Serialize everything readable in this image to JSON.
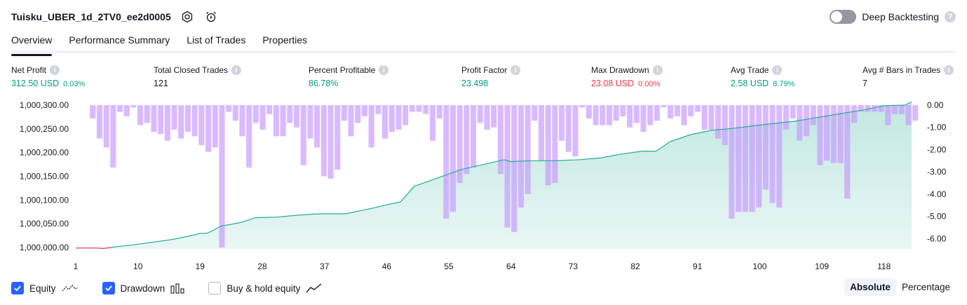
{
  "header": {
    "strategy_name": "Tuisku_UBER_1d_2TV0_ee2d0005",
    "deep_backtesting_label": "Deep Backtesting"
  },
  "tabs": [
    {
      "label": "Overview",
      "active": true
    },
    {
      "label": "Performance Summary",
      "active": false
    },
    {
      "label": "List of Trades",
      "active": false
    },
    {
      "label": "Properties",
      "active": false
    }
  ],
  "metrics": [
    {
      "label": "Net Profit",
      "value": "312.50 USD",
      "pct": "0.03%",
      "color": "#089981"
    },
    {
      "label": "Total Closed Trades",
      "value": "121",
      "pct": "",
      "color": "#131722"
    },
    {
      "label": "Percent Profitable",
      "value": "86.78%",
      "pct": "",
      "color": "#089981"
    },
    {
      "label": "Profit Factor",
      "value": "23.498",
      "pct": "",
      "color": "#089981"
    },
    {
      "label": "Max Drawdown",
      "value": "23.08 USD",
      "pct": "0.00%",
      "color": "#f23645"
    },
    {
      "label": "Avg Trade",
      "value": "2.58 USD",
      "pct": "8.79%",
      "color": "#089981"
    },
    {
      "label": "Avg # Bars in Trades",
      "value": "7",
      "pct": "",
      "color": "#131722"
    }
  ],
  "legend": {
    "equity_label": "Equity",
    "drawdown_label": "Drawdown",
    "buy_hold_label": "Buy & hold equity",
    "equity_checked": true,
    "drawdown_checked": true,
    "buy_hold_checked": false
  },
  "mode": {
    "absolute_label": "Absolute",
    "percentage_label": "Percentage",
    "active": "absolute"
  },
  "colors": {
    "equity_line": "#22ab94",
    "equity_line_negative": "#f23645",
    "equity_fill": "#22ab94",
    "drawdown_bar": "#c99bff",
    "accent": "#2962ff"
  },
  "chart_data": {
    "type": "area",
    "x_ticks": [
      "1",
      "10",
      "19",
      "28",
      "37",
      "46",
      "55",
      "64",
      "73",
      "82",
      "91",
      "100",
      "109",
      "118"
    ],
    "xlim": [
      1,
      123
    ],
    "y_left_ticks": [
      "1,000,300.00",
      "1,000,250.00",
      "1,000,200.00",
      "1,000,150.00",
      "1,000,100.00",
      "1,000,050.00",
      "1,000,000.00"
    ],
    "y_left_range": [
      1000000,
      1000300
    ],
    "y_right_ticks": [
      "0.00",
      "-1.00",
      "-2.00",
      "-3.00",
      "-4.00",
      "-5.00",
      "-6.00"
    ],
    "y_right_range": [
      -6.4,
      0
    ],
    "series": [
      {
        "name": "Equity",
        "kind": "line",
        "points": [
          [
            1,
            999999
          ],
          [
            4,
            999999
          ],
          [
            5,
            999998
          ],
          [
            6,
            1000000
          ],
          [
            10,
            1000007
          ],
          [
            15,
            1000017
          ],
          [
            18,
            1000026
          ],
          [
            19,
            1000030
          ],
          [
            20,
            1000030
          ],
          [
            21,
            1000037
          ],
          [
            22,
            1000045
          ],
          [
            25,
            1000053
          ],
          [
            27,
            1000063
          ],
          [
            30,
            1000064
          ],
          [
            33,
            1000068
          ],
          [
            36,
            1000071
          ],
          [
            40,
            1000071
          ],
          [
            42,
            1000077
          ],
          [
            44,
            1000083
          ],
          [
            46,
            1000090
          ],
          [
            48,
            1000096
          ],
          [
            50,
            1000129
          ],
          [
            55,
            1000155
          ],
          [
            57,
            1000165
          ],
          [
            60,
            1000175
          ],
          [
            63,
            1000185
          ],
          [
            64,
            1000181
          ],
          [
            67,
            1000183
          ],
          [
            70,
            1000183
          ],
          [
            74,
            1000185
          ],
          [
            77,
            1000189
          ],
          [
            80,
            1000197
          ],
          [
            83,
            1000203
          ],
          [
            85,
            1000203
          ],
          [
            87,
            1000223
          ],
          [
            90,
            1000238
          ],
          [
            93,
            1000247
          ],
          [
            96,
            1000251
          ],
          [
            100,
            1000258
          ],
          [
            105,
            1000266
          ],
          [
            110,
            1000278
          ],
          [
            115,
            1000290
          ],
          [
            118,
            1000299
          ],
          [
            121,
            1000300
          ],
          [
            122,
            1000307
          ]
        ]
      },
      {
        "name": "Drawdown",
        "kind": "bar",
        "values": [
          0.0,
          0.0,
          -0.6,
          -1.5,
          -1.9,
          -2.8,
          -0.3,
          -0.5,
          -0.1,
          -0.9,
          -0.8,
          -1.2,
          -1.3,
          -1.6,
          -1.1,
          -1.5,
          -1.2,
          -1.4,
          -1.8,
          -2.1,
          -1.9,
          -6.4,
          -0.3,
          -0.7,
          -1.4,
          -2.8,
          -0.8,
          -1.1,
          -0.4,
          -1.4,
          -1.4,
          -0.8,
          -1.0,
          -2.7,
          -1.5,
          -1.9,
          -3.2,
          -3.3,
          -2.9,
          -0.7,
          -1.4,
          -0.8,
          -0.5,
          -1.9,
          -0.4,
          -1.5,
          -1.2,
          -1.1,
          -0.9,
          -0.3,
          -0.3,
          -0.4,
          -1.6,
          -0.6,
          -5.1,
          -4.8,
          -3.5,
          -3.1,
          -2.8,
          -0.8,
          -1.1,
          -1.0,
          -3.1,
          -5.5,
          -5.7,
          -4.6,
          -4.0,
          -0.7,
          -2.5,
          -3.6,
          -3.5,
          -1.6,
          -2.1,
          -2.3,
          -0.1,
          -0.6,
          -0.9,
          -0.9,
          -0.9,
          -0.7,
          -0.5,
          -1.0,
          -0.8,
          -1.2,
          -0.9,
          -0.7,
          -0.1,
          -0.6,
          -0.5,
          -0.9,
          -0.5,
          -0.3,
          -1.1,
          -1.1,
          -1.5,
          -1.8,
          -5.1,
          -4.8,
          -4.8,
          -4.8,
          -4.6,
          -3.8,
          -4.4,
          -4.6,
          -1.1,
          -0.6,
          -1.6,
          -1.4,
          -0.9,
          -2.7,
          -2.5,
          -2.6,
          -2.6,
          -4.2,
          -0.8,
          -0.3,
          -0.3,
          -0.3,
          -0.3,
          -0.9,
          -0.4,
          -0.4,
          -0.9,
          -0.7
        ]
      }
    ]
  }
}
